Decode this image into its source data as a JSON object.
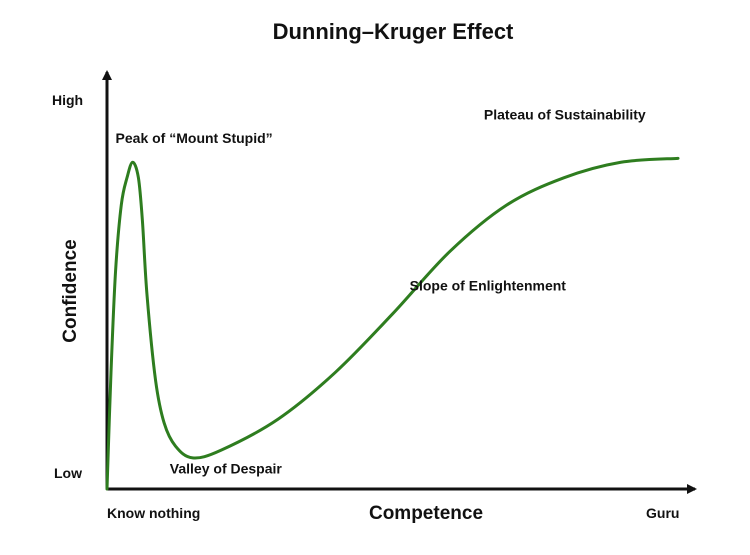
{
  "chart_data": {
    "type": "line",
    "title": "Dunning–Kruger Effect",
    "xlabel": "Competence",
    "ylabel": "Confidence",
    "x_tick_labels": [
      "Know nothing",
      "Guru"
    ],
    "y_tick_labels": [
      "Low",
      "High"
    ],
    "xlim": [
      0,
      1
    ],
    "ylim": [
      0,
      1
    ],
    "grid": false,
    "legend": "none",
    "line_color": "#2e7d1f",
    "series": [
      {
        "x": [
          0.0,
          0.007,
          0.015,
          0.025,
          0.035,
          0.045,
          0.055,
          0.062,
          0.07,
          0.085,
          0.1,
          0.12,
          0.15,
          0.2,
          0.3,
          0.4,
          0.5,
          0.6,
          0.7,
          0.8,
          0.9,
          1.0
        ],
        "y": [
          0.0,
          0.3,
          0.56,
          0.73,
          0.8,
          0.84,
          0.8,
          0.69,
          0.5,
          0.28,
          0.17,
          0.11,
          0.08,
          0.1,
          0.18,
          0.3,
          0.45,
          0.61,
          0.73,
          0.8,
          0.84,
          0.85
        ]
      }
    ],
    "annotations": [
      {
        "text": "Peak of “Mount Stupid”",
        "x": 0.015,
        "y": 0.89
      },
      {
        "text": "Valley of Despair",
        "x": 0.11,
        "y": 0.04
      },
      {
        "text": "Slope of Enlightenment",
        "x": 0.53,
        "y": 0.51
      },
      {
        "text": "Plateau of Sustainability",
        "x": 0.66,
        "y": 0.95
      }
    ]
  }
}
